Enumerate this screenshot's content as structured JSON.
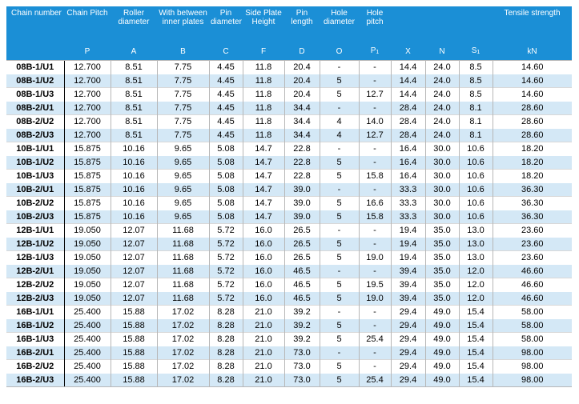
{
  "colors": {
    "header_bg": "#1b8fd6",
    "stripe": "#d4e8f6"
  },
  "headers": [
    "Chain number",
    "Chain Pitch",
    "Roller diameter",
    "With between inner plates",
    "Pin diameter",
    "Side Plate Height",
    "Pin length",
    "Hole diameter",
    "Hole pitch",
    "",
    "",
    "",
    "Tensile strength"
  ],
  "symbols": [
    "",
    "P",
    "A",
    "B",
    "C",
    "F",
    "D",
    "O",
    "P1",
    "X",
    "N",
    "S1",
    "kN"
  ],
  "rows": [
    [
      "08B-1/U1",
      "12.700",
      "8.51",
      "7.75",
      "4.45",
      "11.8",
      "20.4",
      "-",
      "-",
      "14.4",
      "24.0",
      "8.5",
      "14.60"
    ],
    [
      "08B-1/U2",
      "12.700",
      "8.51",
      "7.75",
      "4.45",
      "11.8",
      "20.4",
      "5",
      "-",
      "14.4",
      "24.0",
      "8.5",
      "14.60"
    ],
    [
      "08B-1/U3",
      "12.700",
      "8.51",
      "7.75",
      "4.45",
      "11.8",
      "20.4",
      "5",
      "12.7",
      "14.4",
      "24.0",
      "8.5",
      "14.60"
    ],
    [
      "08B-2/U1",
      "12.700",
      "8.51",
      "7.75",
      "4.45",
      "11.8",
      "34.4",
      "-",
      "-",
      "28.4",
      "24.0",
      "8.1",
      "28.60"
    ],
    [
      "08B-2/U2",
      "12.700",
      "8.51",
      "7.75",
      "4.45",
      "11.8",
      "34.4",
      "4",
      "14.0",
      "28.4",
      "24.0",
      "8.1",
      "28.60"
    ],
    [
      "08B-2/U3",
      "12.700",
      "8.51",
      "7.75",
      "4.45",
      "11.8",
      "34.4",
      "4",
      "12.7",
      "28.4",
      "24.0",
      "8.1",
      "28.60"
    ],
    [
      "10B-1/U1",
      "15.875",
      "10.16",
      "9.65",
      "5.08",
      "14.7",
      "22.8",
      "-",
      "-",
      "16.4",
      "30.0",
      "10.6",
      "18.20"
    ],
    [
      "10B-1/U2",
      "15.875",
      "10.16",
      "9.65",
      "5.08",
      "14.7",
      "22.8",
      "5",
      "-",
      "16.4",
      "30.0",
      "10.6",
      "18.20"
    ],
    [
      "10B-1/U3",
      "15.875",
      "10.16",
      "9.65",
      "5.08",
      "14.7",
      "22.8",
      "5",
      "15.8",
      "16.4",
      "30.0",
      "10.6",
      "18.20"
    ],
    [
      "10B-2/U1",
      "15.875",
      "10.16",
      "9.65",
      "5.08",
      "14.7",
      "39.0",
      "-",
      "-",
      "33.3",
      "30.0",
      "10.6",
      "36.30"
    ],
    [
      "10B-2/U2",
      "15.875",
      "10.16",
      "9.65",
      "5.08",
      "14.7",
      "39.0",
      "5",
      "16.6",
      "33.3",
      "30.0",
      "10.6",
      "36.30"
    ],
    [
      "10B-2/U3",
      "15.875",
      "10.16",
      "9.65",
      "5.08",
      "14.7",
      "39.0",
      "5",
      "15.8",
      "33.3",
      "30.0",
      "10.6",
      "36.30"
    ],
    [
      "12B-1/U1",
      "19.050",
      "12.07",
      "11.68",
      "5.72",
      "16.0",
      "26.5",
      "-",
      "-",
      "19.4",
      "35.0",
      "13.0",
      "23.60"
    ],
    [
      "12B-1/U2",
      "19.050",
      "12.07",
      "11.68",
      "5.72",
      "16.0",
      "26.5",
      "5",
      "-",
      "19.4",
      "35.0",
      "13.0",
      "23.60"
    ],
    [
      "12B-1/U3",
      "19.050",
      "12.07",
      "11.68",
      "5.72",
      "16.0",
      "26.5",
      "5",
      "19.0",
      "19.4",
      "35.0",
      "13.0",
      "23.60"
    ],
    [
      "12B-2/U1",
      "19.050",
      "12.07",
      "11.68",
      "5.72",
      "16.0",
      "46.5",
      "-",
      "-",
      "39.4",
      "35.0",
      "12.0",
      "46.60"
    ],
    [
      "12B-2/U2",
      "19.050",
      "12.07",
      "11.68",
      "5.72",
      "16.0",
      "46.5",
      "5",
      "19.5",
      "39.4",
      "35.0",
      "12.0",
      "46.60"
    ],
    [
      "12B-2/U3",
      "19.050",
      "12.07",
      "11.68",
      "5.72",
      "16.0",
      "46.5",
      "5",
      "19.0",
      "39.4",
      "35.0",
      "12.0",
      "46.60"
    ],
    [
      "16B-1/U1",
      "25.400",
      "15.88",
      "17.02",
      "8.28",
      "21.0",
      "39.2",
      "-",
      "-",
      "29.4",
      "49.0",
      "15.4",
      "58.00"
    ],
    [
      "16B-1/U2",
      "25.400",
      "15.88",
      "17.02",
      "8.28",
      "21.0",
      "39.2",
      "5",
      "-",
      "29.4",
      "49.0",
      "15.4",
      "58.00"
    ],
    [
      "16B-1/U3",
      "25.400",
      "15.88",
      "17.02",
      "8.28",
      "21.0",
      "39.2",
      "5",
      "25.4",
      "29.4",
      "49.0",
      "15.4",
      "58.00"
    ],
    [
      "16B-2/U1",
      "25.400",
      "15.88",
      "17.02",
      "8.28",
      "21.0",
      "73.0",
      "-",
      "-",
      "29.4",
      "49.0",
      "15.4",
      "98.00"
    ],
    [
      "16B-2/U2",
      "25.400",
      "15.88",
      "17.02",
      "8.28",
      "21.0",
      "73.0",
      "5",
      "-",
      "29.4",
      "49.0",
      "15.4",
      "98.00"
    ],
    [
      "16B-2/U3",
      "25.400",
      "15.88",
      "17.02",
      "8.28",
      "21.0",
      "73.0",
      "5",
      "25.4",
      "29.4",
      "49.0",
      "15.4",
      "98.00"
    ]
  ]
}
